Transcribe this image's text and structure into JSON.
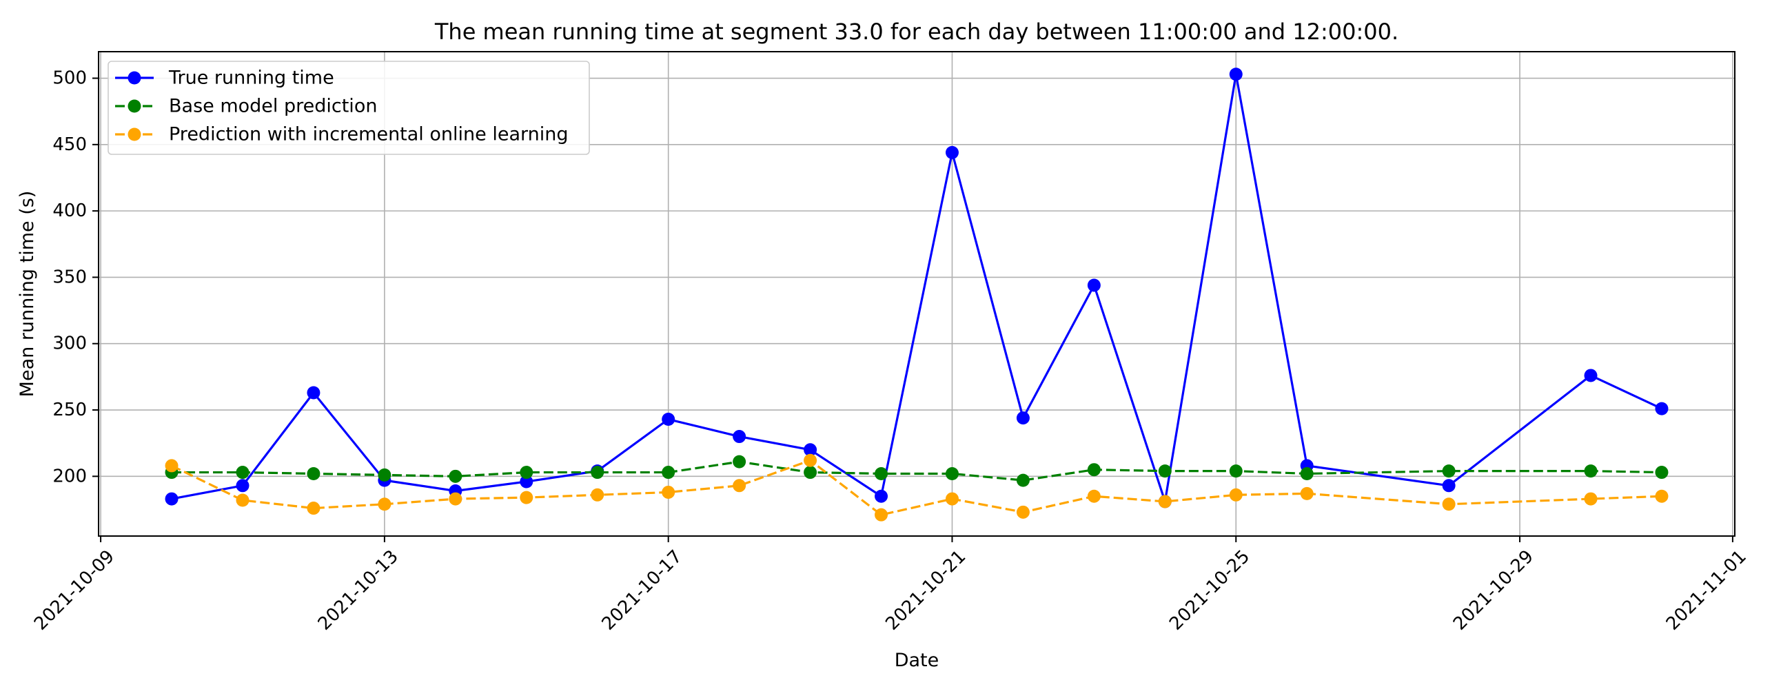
{
  "chart_data": {
    "type": "line",
    "title": "The mean running time at segment 33.0 for each day between 11:00:00 and 12:00:00.",
    "xlabel": "Date",
    "ylabel": "Mean running time (s)",
    "x_ticks": [
      "2021-10-09",
      "2021-10-13",
      "2021-10-17",
      "2021-10-21",
      "2021-10-25",
      "2021-10-29",
      "2021-11-01"
    ],
    "y_ticks": [
      200,
      250,
      300,
      350,
      400,
      450,
      500
    ],
    "xlim": [
      "2021-10-09",
      "2021-11-01"
    ],
    "ylim": [
      155,
      520
    ],
    "grid": true,
    "legend_position": "top-left",
    "series": [
      {
        "name": "True running time",
        "color": "#0000ff",
        "linestyle": "solid",
        "marker": "circle",
        "x": [
          "2021-10-10",
          "2021-10-11",
          "2021-10-12",
          "2021-10-13",
          "2021-10-14",
          "2021-10-15",
          "2021-10-16",
          "2021-10-17",
          "2021-10-18",
          "2021-10-19",
          "2021-10-20",
          "2021-10-21",
          "2021-10-22",
          "2021-10-23",
          "2021-10-24",
          "2021-10-25",
          "2021-10-26",
          "2021-10-28",
          "2021-10-30",
          "2021-10-31"
        ],
        "values": [
          183,
          193,
          263,
          197,
          189,
          196,
          204,
          243,
          230,
          220,
          185,
          444,
          244,
          344,
          181,
          503,
          208,
          193,
          276,
          251
        ]
      },
      {
        "name": "Base model prediction",
        "color": "#008000",
        "linestyle": "dashed",
        "marker": "circle",
        "x": [
          "2021-10-10",
          "2021-10-11",
          "2021-10-12",
          "2021-10-13",
          "2021-10-14",
          "2021-10-15",
          "2021-10-16",
          "2021-10-17",
          "2021-10-18",
          "2021-10-19",
          "2021-10-20",
          "2021-10-21",
          "2021-10-22",
          "2021-10-23",
          "2021-10-24",
          "2021-10-25",
          "2021-10-26",
          "2021-10-28",
          "2021-10-30",
          "2021-10-31"
        ],
        "values": [
          203,
          203,
          202,
          201,
          200,
          203,
          203,
          203,
          211,
          203,
          202,
          202,
          197,
          205,
          204,
          204,
          202,
          204,
          204,
          203
        ]
      },
      {
        "name": "Prediction with incremental online learning",
        "color": "#ffa500",
        "linestyle": "dashed",
        "marker": "circle",
        "x": [
          "2021-10-10",
          "2021-10-11",
          "2021-10-12",
          "2021-10-13",
          "2021-10-14",
          "2021-10-15",
          "2021-10-16",
          "2021-10-17",
          "2021-10-18",
          "2021-10-19",
          "2021-10-20",
          "2021-10-21",
          "2021-10-22",
          "2021-10-23",
          "2021-10-24",
          "2021-10-25",
          "2021-10-26",
          "2021-10-28",
          "2021-10-30",
          "2021-10-31"
        ],
        "values": [
          208,
          182,
          176,
          179,
          183,
          184,
          186,
          188,
          193,
          212,
          171,
          183,
          173,
          185,
          181,
          186,
          187,
          179,
          183,
          185
        ]
      }
    ]
  }
}
